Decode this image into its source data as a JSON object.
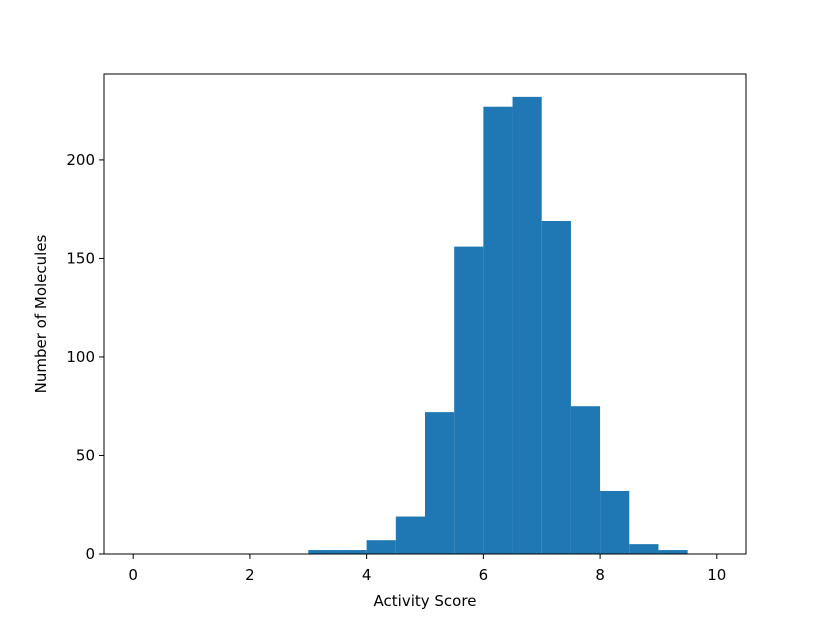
{
  "chart_data": {
    "type": "histogram",
    "x_label": "Activity Score",
    "y_label": "Number of Molecules",
    "bins": [
      0,
      0.5,
      1,
      1.5,
      2,
      2.5,
      3,
      3.5,
      4,
      4.5,
      5,
      5.5,
      6,
      6.5,
      7,
      7.5,
      8,
      8.5,
      9,
      9.5,
      10
    ],
    "values": [
      0,
      0,
      0,
      0,
      0,
      0,
      2,
      2,
      7,
      19,
      72,
      156,
      227,
      232,
      169,
      75,
      32,
      5,
      2,
      0
    ],
    "color": "#1f77b4",
    "xlim": [
      -0.5,
      10.5
    ],
    "xticks": [
      0,
      2,
      4,
      6,
      8,
      10
    ],
    "ylim": [
      0,
      243.6
    ],
    "yticks": [
      0,
      50,
      100,
      150,
      200
    ]
  }
}
